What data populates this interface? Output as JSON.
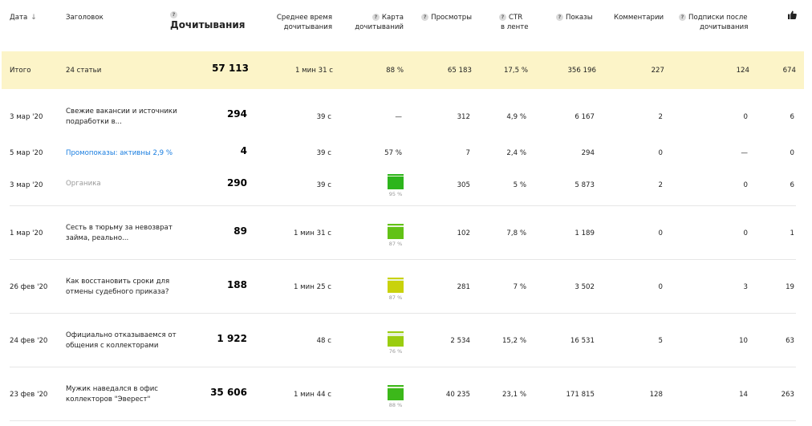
{
  "header": {
    "date": "Дата",
    "title": "Заголовок",
    "reads": "Дочитывания",
    "avg_time_1": "Среднее время",
    "avg_time_2": "дочитывания",
    "map_1": "Карта",
    "map_2": "дочитываний",
    "views": "Просмотры",
    "ctr_1": "CTR",
    "ctr_2": "в ленте",
    "impressions": "Показы",
    "comments": "Комментарии",
    "subs_1": "Подписки после",
    "subs_2": "дочитывания",
    "hint": "?"
  },
  "total": {
    "label": "Итого",
    "title": "24 статьи",
    "reads": "57 113",
    "time": "1 мин 31 с",
    "map": "88 %",
    "views": "65 183",
    "ctr": "17,5 %",
    "impressions": "356 196",
    "comments": "227",
    "subs": "124",
    "likes": "674"
  },
  "rows": [
    {
      "date": "3 мар '20",
      "title": "Свежие вакансии и источники подработки в...",
      "reads": "294",
      "time": "39 с",
      "map_text": "—",
      "views": "312",
      "ctr": "4,9 %",
      "impressions": "6 167",
      "comments": "2",
      "subs": "0",
      "likes": "6"
    },
    {
      "date": "5 мар '20",
      "title": "Промопоказы: активны 2,9 %",
      "reads": "4",
      "time": "39 с",
      "map_text": "57 %",
      "views": "7",
      "ctr": "2,4 %",
      "impressions": "294",
      "comments": "0",
      "subs": "—",
      "likes": "0"
    },
    {
      "date": "3 мар '20",
      "title": "Органика",
      "reads": "290",
      "time": "39 с",
      "map_pct": "95 %",
      "map_value": 0.95,
      "map_color": "#2db51c",
      "views": "305",
      "ctr": "5 %",
      "impressions": "5 873",
      "comments": "2",
      "subs": "0",
      "likes": "6"
    },
    {
      "date": "1 мар '20",
      "title": "Сесть в тюрьму за невозврат займа, реально...",
      "reads": "89",
      "time": "1 мин 31 с",
      "map_pct": "87 %",
      "map_value": 0.87,
      "map_color": "#62c216",
      "views": "102",
      "ctr": "7,8 %",
      "impressions": "1 189",
      "comments": "0",
      "subs": "0",
      "likes": "1"
    },
    {
      "date": "26 фев '20",
      "title": "Как восстановить сроки для отмены судебного приказа?",
      "reads": "188",
      "time": "1 мин 25 с",
      "map_pct": "87 %",
      "map_value": 0.87,
      "map_color": "#c9d20c",
      "views": "281",
      "ctr": "7 %",
      "impressions": "3 502",
      "comments": "0",
      "subs": "3",
      "likes": "19"
    },
    {
      "date": "24 фев '20",
      "title": "Официально отказываемся от общения с коллекторами",
      "reads": "1 922",
      "time": "48 с",
      "map_pct": "76 %",
      "map_value": 0.76,
      "map_color": "#9acd10",
      "views": "2 534",
      "ctr": "15,2 %",
      "impressions": "16 531",
      "comments": "5",
      "subs": "10",
      "likes": "63"
    },
    {
      "date": "23 фев '20",
      "title": "Мужик наведался в офис коллекторов \"Эверест\"",
      "reads": "35 606",
      "time": "1 мин 44 с",
      "map_pct": "88 %",
      "map_value": 0.88,
      "map_color": "#3cb81a",
      "views": "40 235",
      "ctr": "23,1 %",
      "impressions": "171 815",
      "comments": "128",
      "subs": "14",
      "likes": "263"
    }
  ]
}
